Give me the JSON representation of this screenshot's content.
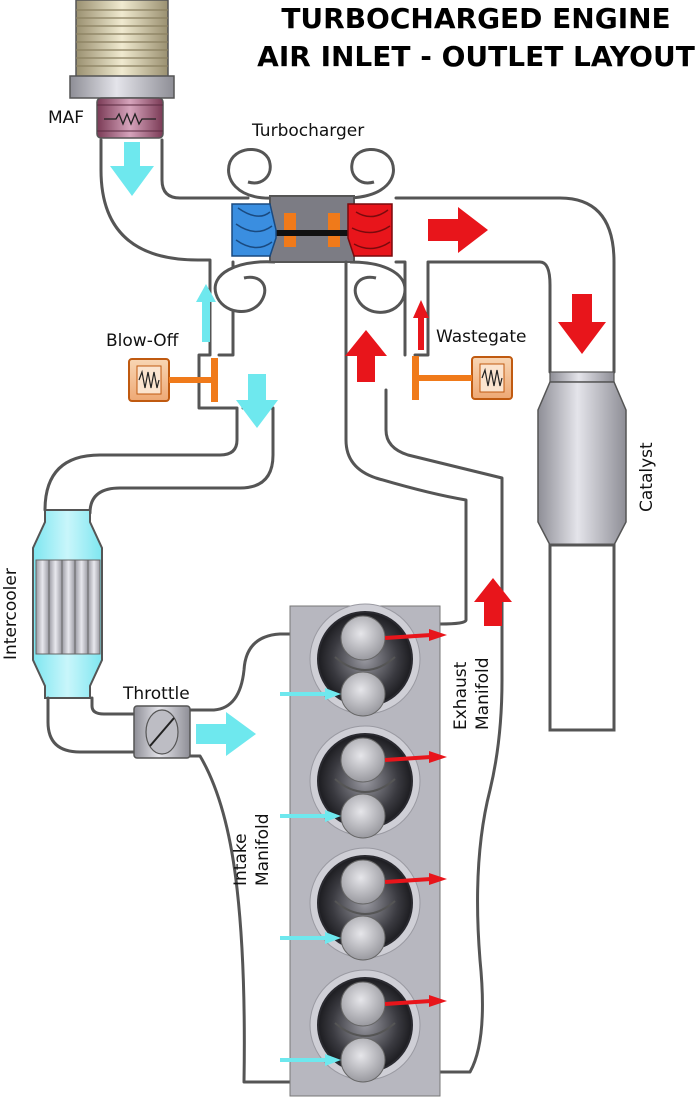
{
  "title": {
    "line1": "TURBOCHARGED ENGINE",
    "line2": "AIR INLET - OUTLET LAYOUT"
  },
  "labels": {
    "maf": "MAF",
    "turbocharger": "Turbocharger",
    "blow_off": "Blow-Off",
    "wastegate": "Wastegate",
    "catalyst": "Catalyst",
    "intercooler": "Intercooler",
    "throttle": "Throttle",
    "intake_manifold_1": "Intake",
    "intake_manifold_2": "Manifold",
    "exhaust_manifold_1": "Exhaust",
    "exhaust_manifold_2": "Manifold"
  },
  "colors": {
    "intake_air": "#6ee8ee",
    "exhaust": "#e8151b",
    "compressor": "#3a8ee0",
    "turbine": "#e8151b",
    "actuator": "#f07a1a",
    "engine_block": "#b7b7bf"
  },
  "cylinders": 4
}
